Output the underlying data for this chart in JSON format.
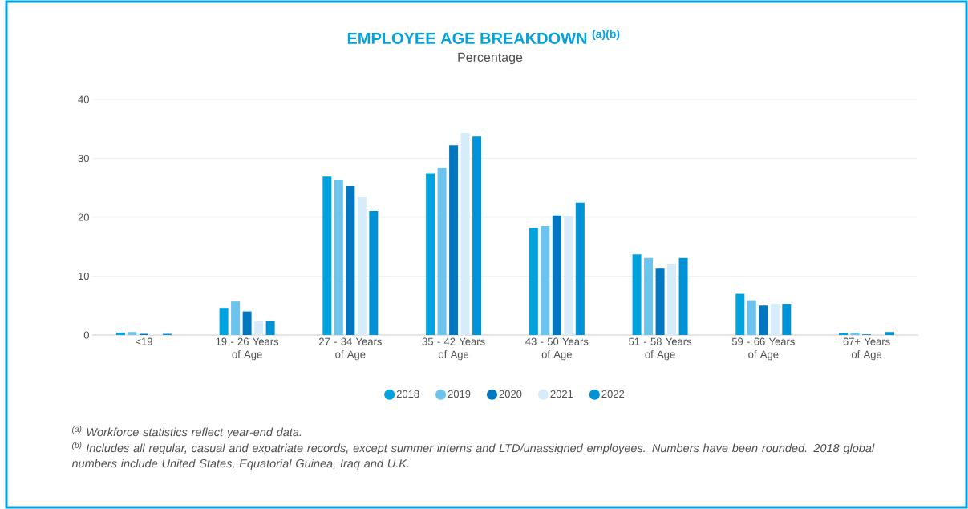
{
  "chart_data": {
    "type": "bar",
    "title": "EMPLOYEE AGE BREAKDOWN $^{(a)(b)}$",
    "subtitle": "Percentage",
    "categories": [
      "<19",
      "19 - 26 Years of Age",
      "27 - 34 Years of Age",
      "35 - 42 Years of Age",
      "43 - 50 Years of Age",
      "51 - 58 Years of Age",
      "59 - 66 Years of Age",
      "67+ Years of Age"
    ],
    "series": [
      {
        "name": "2018",
        "color": "#00a3e0",
        "values": [
          0.4,
          4.6,
          26.9,
          27.4,
          18.2,
          13.7,
          7.0,
          0.3
        ]
      },
      {
        "name": "2019",
        "color": "#6cc4ee",
        "values": [
          0.5,
          5.7,
          26.4,
          28.4,
          18.5,
          13.1,
          5.9,
          0.4
        ]
      },
      {
        "name": "2020",
        "color": "#0077c0",
        "values": [
          0.2,
          4.0,
          25.3,
          32.2,
          20.3,
          11.4,
          5.0,
          0.1
        ]
      },
      {
        "name": "2021",
        "color": "#d6ecfa",
        "values": [
          null,
          2.3,
          23.4,
          34.3,
          20.2,
          12.1,
          5.3,
          null
        ]
      },
      {
        "name": "2022",
        "color": "#0092d6",
        "values": [
          0.2,
          2.4,
          21.1,
          33.7,
          22.5,
          13.1,
          5.3,
          0.5
        ]
      }
    ],
    "ylim": [
      0,
      40
    ],
    "yticks": [
      0,
      10,
      20,
      30,
      40
    ],
    "grid": "y",
    "legend": "bottom",
    "annotations": [
      "$^{(a)}$ Workforce statistics reflect year-end data.",
      "$^{(b)}$ Includes all regular, casual and expatriate records, except summer interns and LTD/unassigned employees. Numbers have been rounded. 2018 global numbers include United States, Equatorial Guinea, Iraq and U.K."
    ]
  }
}
